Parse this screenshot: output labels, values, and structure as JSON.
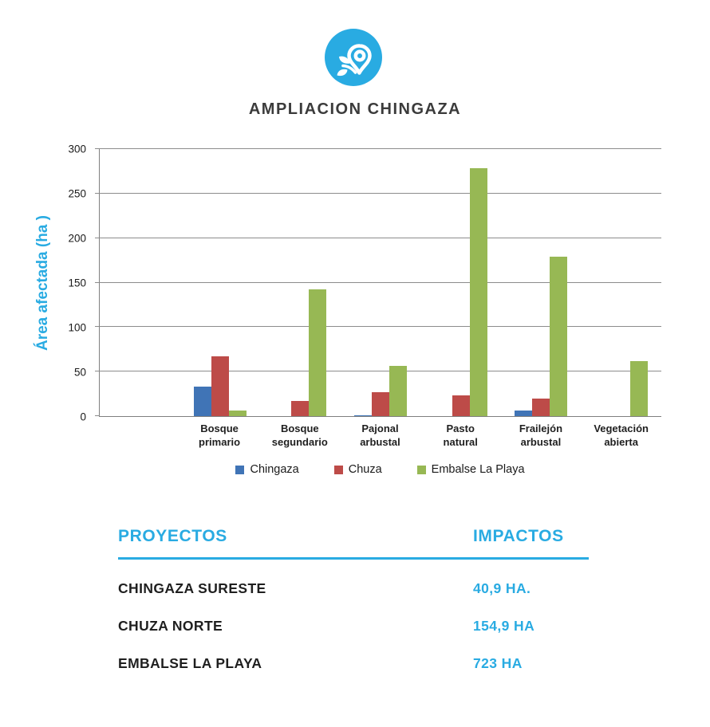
{
  "header": {
    "title": "AMPLIACION CHINGAZA",
    "icon": "map-pin-flower-icon",
    "icon_bg_color": "#29ABE2"
  },
  "colors": {
    "accent_blue": "#29ABE2",
    "title_text": "#3b3b3b",
    "grid_gray": "#8c8c8c",
    "series_chingaza": "#4074B6",
    "series_chuza": "#BD4B48",
    "series_embalse": "#97B854"
  },
  "chart_data": {
    "type": "bar",
    "title": "",
    "xlabel": "",
    "ylabel": "Área afectada (ha )",
    "ylim": [
      0,
      300
    ],
    "yticks": [
      0,
      50,
      100,
      150,
      200,
      250,
      300
    ],
    "grid": true,
    "legend_position": "bottom",
    "leading_empty_category": true,
    "categories": [
      "Bosque primario",
      "Bosque segundario",
      "Pajonal arbustal",
      "Pasto natural",
      "Frailejón arbustal",
      "Vegetación abierta"
    ],
    "series": [
      {
        "name": "Chingaza",
        "color": "#4074B6",
        "values": [
          33,
          0,
          1,
          0,
          6,
          0
        ]
      },
      {
        "name": "Chuza",
        "color": "#BD4B48",
        "values": [
          67,
          17,
          27,
          23,
          20,
          0
        ]
      },
      {
        "name": "Embalse La Playa",
        "color": "#97B854",
        "values": [
          6,
          142,
          56,
          278,
          179,
          62
        ]
      }
    ]
  },
  "table": {
    "col1_header": "PROYECTOS",
    "col2_header": "IMPACTOS",
    "rows": [
      {
        "project": "CHINGAZA SURESTE",
        "impact": "40,9 HA."
      },
      {
        "project": "CHUZA NORTE",
        "impact": "154,9 HA"
      },
      {
        "project": "EMBALSE LA PLAYA",
        "impact": "723 HA"
      }
    ]
  }
}
